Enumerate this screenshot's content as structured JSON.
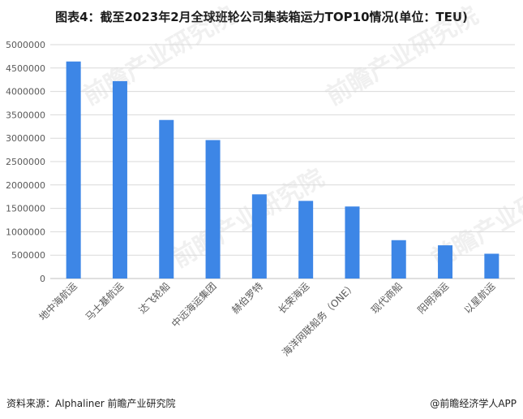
{
  "title": "图表4：截至2023年2月全球班轮公司集装箱运力TOP10情况(单位：TEU)",
  "source": "资料来源：Alphaliner 前瞻产业研究院",
  "brand": "@前瞻经济学人APP",
  "watermark": "前瞻产业研究院",
  "colors": {
    "bar": "#3d86e6",
    "grid": "#d9d9d9",
    "axis": "#bfbfbf",
    "text": "#595959"
  },
  "chart_data": {
    "type": "bar",
    "title": "图表4：截至2023年2月全球班轮公司集装箱运力TOP10情况(单位：TEU)",
    "xlabel": "",
    "ylabel": "",
    "categories": [
      "地中海航运",
      "马士基航运",
      "达飞轮船",
      "中远海运集团",
      "赫伯罗特",
      "长荣海运",
      "海洋网联船务（ONE）",
      "现代商船",
      "阳明海运",
      "以星航运"
    ],
    "values": [
      4640000,
      4220000,
      3390000,
      2960000,
      1800000,
      1660000,
      1540000,
      820000,
      710000,
      530000
    ],
    "ylim": [
      0,
      5000000
    ],
    "yticks": [
      "0",
      "500000",
      "1000000",
      "1500000",
      "2000000",
      "2500000",
      "3000000",
      "3500000",
      "4000000",
      "4500000",
      "5000000"
    ],
    "grid": true,
    "legend": "none"
  }
}
